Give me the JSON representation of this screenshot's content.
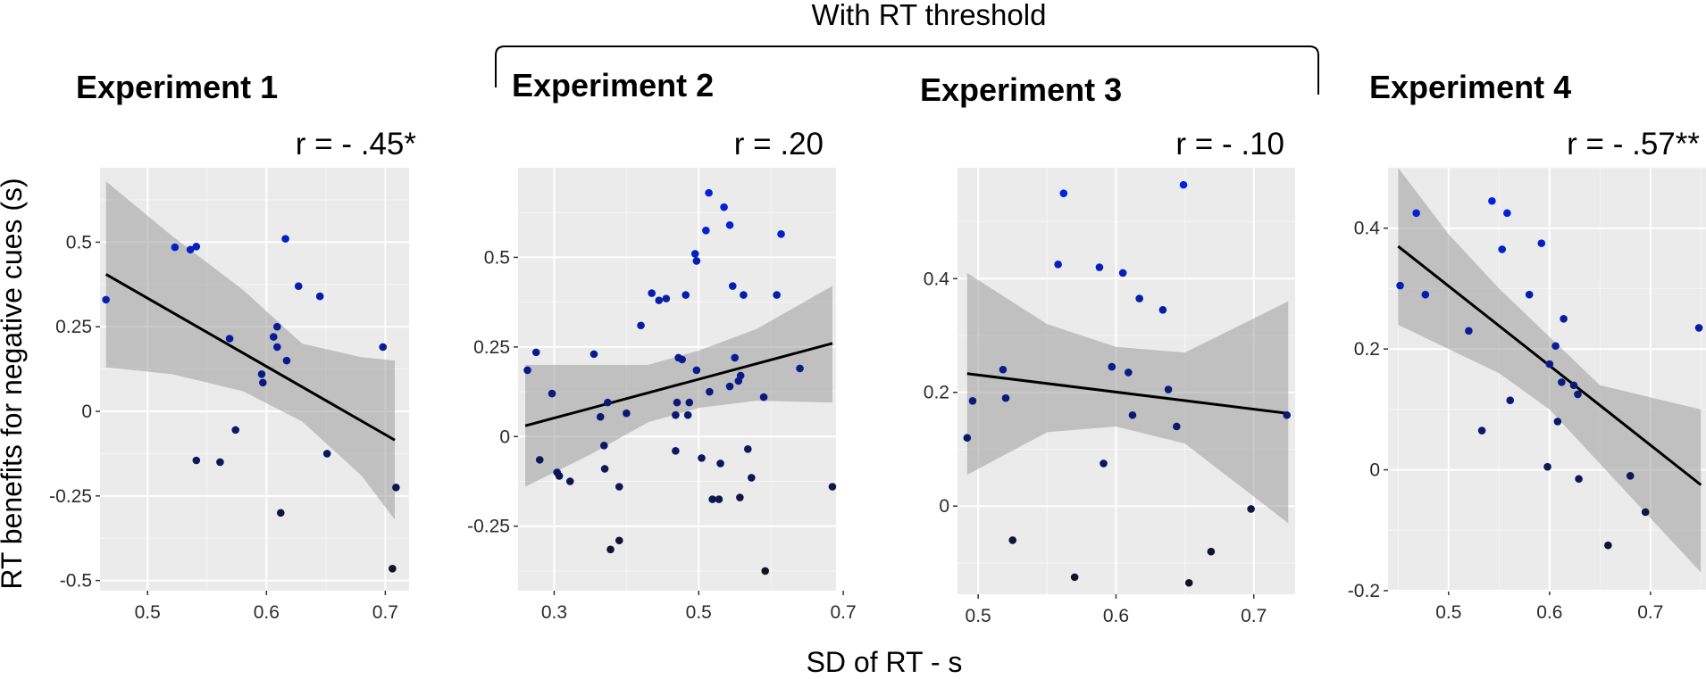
{
  "figure": {
    "bracket_label": "With RT threshold",
    "xlabel": "SD of RT - s",
    "ylabel": "RT benefits for negative cues (s)"
  },
  "chart_data": [
    {
      "type": "scatter",
      "title": "Experiment 1",
      "r_label": "r = - .45*",
      "xlim": [
        0.46,
        0.72
      ],
      "ylim": [
        -0.53,
        0.72
      ],
      "xticks": [
        0.5,
        0.6,
        0.7
      ],
      "xtick_labels": [
        "0.5",
        "0.6",
        "0.7"
      ],
      "yticks": [
        0.5,
        0.25,
        0,
        -0.25,
        -0.5
      ],
      "ytick_labels": [
        "0.5",
        "0.25",
        "0",
        "-0.25",
        "-0.5"
      ],
      "fit": {
        "x": [
          0.465,
          0.708
        ],
        "y": [
          0.405,
          -0.085
        ]
      },
      "ci": {
        "x": [
          0.465,
          0.52,
          0.58,
          0.63,
          0.68,
          0.708
        ],
        "upper": [
          0.68,
          0.52,
          0.36,
          0.2,
          0.16,
          0.15
        ],
        "lower": [
          0.13,
          0.11,
          0.06,
          -0.03,
          -0.19,
          -0.32
        ]
      },
      "points": [
        {
          "x": 0.465,
          "y": 0.33
        },
        {
          "x": 0.523,
          "y": 0.485
        },
        {
          "x": 0.536,
          "y": 0.478
        },
        {
          "x": 0.541,
          "y": 0.487
        },
        {
          "x": 0.541,
          "y": -0.145
        },
        {
          "x": 0.561,
          "y": -0.15
        },
        {
          "x": 0.569,
          "y": 0.215
        },
        {
          "x": 0.574,
          "y": -0.055
        },
        {
          "x": 0.596,
          "y": 0.11
        },
        {
          "x": 0.597,
          "y": 0.085
        },
        {
          "x": 0.606,
          "y": 0.22
        },
        {
          "x": 0.609,
          "y": 0.25
        },
        {
          "x": 0.609,
          "y": 0.19
        },
        {
          "x": 0.612,
          "y": -0.3
        },
        {
          "x": 0.616,
          "y": 0.51
        },
        {
          "x": 0.617,
          "y": 0.15
        },
        {
          "x": 0.627,
          "y": 0.37
        },
        {
          "x": 0.645,
          "y": 0.34
        },
        {
          "x": 0.651,
          "y": -0.125
        },
        {
          "x": 0.698,
          "y": 0.19
        },
        {
          "x": 0.706,
          "y": -0.465
        },
        {
          "x": 0.709,
          "y": -0.225
        }
      ]
    },
    {
      "type": "scatter",
      "title": "Experiment 2",
      "r_label": "r =  .20",
      "xlim": [
        0.25,
        0.69
      ],
      "ylim": [
        -0.43,
        0.75
      ],
      "xticks": [
        0.3,
        0.5,
        0.7
      ],
      "xtick_labels": [
        "0.3",
        "0.5",
        "0.7"
      ],
      "yticks": [
        0.5,
        0.25,
        0,
        -0.25
      ],
      "ytick_labels": [
        "0.5",
        "0.25",
        "0",
        "-0.25"
      ],
      "fit": {
        "x": [
          0.26,
          0.685
        ],
        "y": [
          0.03,
          0.26
        ]
      },
      "ci": {
        "x": [
          0.26,
          0.35,
          0.43,
          0.5,
          0.58,
          0.685
        ],
        "upper": [
          0.2,
          0.2,
          0.2,
          0.24,
          0.3,
          0.42
        ],
        "lower": [
          -0.14,
          -0.05,
          0.04,
          0.08,
          0.1,
          0.095
        ]
      },
      "points": [
        {
          "x": 0.263,
          "y": 0.185
        },
        {
          "x": 0.275,
          "y": 0.235
        },
        {
          "x": 0.28,
          "y": -0.065
        },
        {
          "x": 0.297,
          "y": 0.12
        },
        {
          "x": 0.304,
          "y": -0.1
        },
        {
          "x": 0.307,
          "y": -0.11
        },
        {
          "x": 0.322,
          "y": -0.125
        },
        {
          "x": 0.355,
          "y": 0.23
        },
        {
          "x": 0.364,
          "y": 0.055
        },
        {
          "x": 0.369,
          "y": -0.025
        },
        {
          "x": 0.37,
          "y": -0.09
        },
        {
          "x": 0.374,
          "y": 0.095
        },
        {
          "x": 0.378,
          "y": -0.315
        },
        {
          "x": 0.39,
          "y": -0.29
        },
        {
          "x": 0.39,
          "y": -0.14
        },
        {
          "x": 0.4,
          "y": 0.065
        },
        {
          "x": 0.42,
          "y": 0.31
        },
        {
          "x": 0.435,
          "y": 0.4
        },
        {
          "x": 0.445,
          "y": 0.38
        },
        {
          "x": 0.455,
          "y": 0.385
        },
        {
          "x": 0.468,
          "y": -0.04
        },
        {
          "x": 0.468,
          "y": 0.06
        },
        {
          "x": 0.47,
          "y": 0.095
        },
        {
          "x": 0.472,
          "y": 0.22
        },
        {
          "x": 0.477,
          "y": 0.215
        },
        {
          "x": 0.482,
          "y": 0.395
        },
        {
          "x": 0.485,
          "y": 0.06
        },
        {
          "x": 0.487,
          "y": 0.095
        },
        {
          "x": 0.495,
          "y": 0.51
        },
        {
          "x": 0.497,
          "y": 0.49
        },
        {
          "x": 0.497,
          "y": 0.185
        },
        {
          "x": 0.504,
          "y": -0.06
        },
        {
          "x": 0.51,
          "y": 0.575
        },
        {
          "x": 0.514,
          "y": 0.68
        },
        {
          "x": 0.515,
          "y": 0.125
        },
        {
          "x": 0.519,
          "y": -0.175
        },
        {
          "x": 0.528,
          "y": -0.175
        },
        {
          "x": 0.53,
          "y": -0.075
        },
        {
          "x": 0.535,
          "y": 0.64
        },
        {
          "x": 0.543,
          "y": 0.59
        },
        {
          "x": 0.543,
          "y": 0.14
        },
        {
          "x": 0.547,
          "y": 0.42
        },
        {
          "x": 0.55,
          "y": 0.22
        },
        {
          "x": 0.555,
          "y": 0.155
        },
        {
          "x": 0.557,
          "y": -0.17
        },
        {
          "x": 0.558,
          "y": 0.17
        },
        {
          "x": 0.562,
          "y": 0.395
        },
        {
          "x": 0.568,
          "y": -0.035
        },
        {
          "x": 0.573,
          "y": -0.115
        },
        {
          "x": 0.59,
          "y": 0.11
        },
        {
          "x": 0.592,
          "y": -0.375
        },
        {
          "x": 0.608,
          "y": 0.395
        },
        {
          "x": 0.614,
          "y": 0.565
        },
        {
          "x": 0.64,
          "y": 0.19
        },
        {
          "x": 0.685,
          "y": -0.14
        }
      ]
    },
    {
      "type": "scatter",
      "title": "Experiment 3",
      "r_label": "r =  - .10",
      "xlim": [
        0.485,
        0.73
      ],
      "ylim": [
        -0.155,
        0.595
      ],
      "xticks": [
        0.5,
        0.6,
        0.7
      ],
      "xtick_labels": [
        "0.5",
        "0.6",
        "0.7"
      ],
      "yticks": [
        0.4,
        0.2,
        0
      ],
      "ytick_labels": [
        "0.4",
        "0.2",
        "0"
      ],
      "fit": {
        "x": [
          0.492,
          0.725
        ],
        "y": [
          0.233,
          0.163
        ]
      },
      "ci": {
        "x": [
          0.492,
          0.55,
          0.6,
          0.65,
          0.725
        ],
        "upper": [
          0.41,
          0.32,
          0.28,
          0.27,
          0.36
        ],
        "lower": [
          0.055,
          0.13,
          0.14,
          0.11,
          -0.03
        ]
      },
      "points": [
        {
          "x": 0.492,
          "y": 0.12
        },
        {
          "x": 0.496,
          "y": 0.185
        },
        {
          "x": 0.518,
          "y": 0.24
        },
        {
          "x": 0.52,
          "y": 0.19
        },
        {
          "x": 0.525,
          "y": -0.06
        },
        {
          "x": 0.558,
          "y": 0.425
        },
        {
          "x": 0.562,
          "y": 0.55
        },
        {
          "x": 0.57,
          "y": -0.125
        },
        {
          "x": 0.588,
          "y": 0.42
        },
        {
          "x": 0.591,
          "y": 0.075
        },
        {
          "x": 0.597,
          "y": 0.245
        },
        {
          "x": 0.605,
          "y": 0.41
        },
        {
          "x": 0.609,
          "y": 0.235
        },
        {
          "x": 0.612,
          "y": 0.16
        },
        {
          "x": 0.617,
          "y": 0.365
        },
        {
          "x": 0.634,
          "y": 0.345
        },
        {
          "x": 0.638,
          "y": 0.205
        },
        {
          "x": 0.644,
          "y": 0.14
        },
        {
          "x": 0.649,
          "y": 0.565
        },
        {
          "x": 0.653,
          "y": -0.135
        },
        {
          "x": 0.669,
          "y": -0.08
        },
        {
          "x": 0.698,
          "y": -0.005
        },
        {
          "x": 0.724,
          "y": 0.16
        }
      ]
    },
    {
      "type": "scatter",
      "title": "Experiment 4",
      "r_label": "r =  - .57**",
      "xlim": [
        0.44,
        0.755
      ],
      "ylim": [
        -0.2,
        0.5
      ],
      "xticks": [
        0.5,
        0.6,
        0.7
      ],
      "xtick_labels": [
        "0.5",
        "0.6",
        "0.7"
      ],
      "yticks": [
        0.4,
        0.2,
        0,
        -0.2
      ],
      "ytick_labels": [
        "0.4",
        "0.2",
        "0",
        "-0.2"
      ],
      "fit": {
        "x": [
          0.45,
          0.75
        ],
        "y": [
          0.37,
          -0.025
        ]
      },
      "ci": {
        "x": [
          0.45,
          0.5,
          0.55,
          0.6,
          0.65,
          0.7,
          0.75
        ],
        "upper": [
          0.5,
          0.39,
          0.3,
          0.22,
          0.14,
          0.12,
          0.1
        ],
        "lower": [
          0.24,
          0.2,
          0.16,
          0.1,
          0.01,
          -0.08,
          -0.17
        ]
      },
      "points": [
        {
          "x": 0.452,
          "y": 0.305
        },
        {
          "x": 0.468,
          "y": 0.425
        },
        {
          "x": 0.477,
          "y": 0.29
        },
        {
          "x": 0.52,
          "y": 0.23
        },
        {
          "x": 0.533,
          "y": 0.065
        },
        {
          "x": 0.543,
          "y": 0.445
        },
        {
          "x": 0.553,
          "y": 0.365
        },
        {
          "x": 0.558,
          "y": 0.425
        },
        {
          "x": 0.561,
          "y": 0.115
        },
        {
          "x": 0.58,
          "y": 0.29
        },
        {
          "x": 0.592,
          "y": 0.375
        },
        {
          "x": 0.598,
          "y": 0.005
        },
        {
          "x": 0.6,
          "y": 0.175
        },
        {
          "x": 0.606,
          "y": 0.205
        },
        {
          "x": 0.608,
          "y": 0.08
        },
        {
          "x": 0.612,
          "y": 0.145
        },
        {
          "x": 0.614,
          "y": 0.25
        },
        {
          "x": 0.624,
          "y": 0.14
        },
        {
          "x": 0.628,
          "y": 0.125
        },
        {
          "x": 0.629,
          "y": -0.015
        },
        {
          "x": 0.658,
          "y": -0.125
        },
        {
          "x": 0.68,
          "y": -0.01
        },
        {
          "x": 0.695,
          "y": -0.07
        },
        {
          "x": 0.748,
          "y": 0.235
        }
      ]
    }
  ]
}
